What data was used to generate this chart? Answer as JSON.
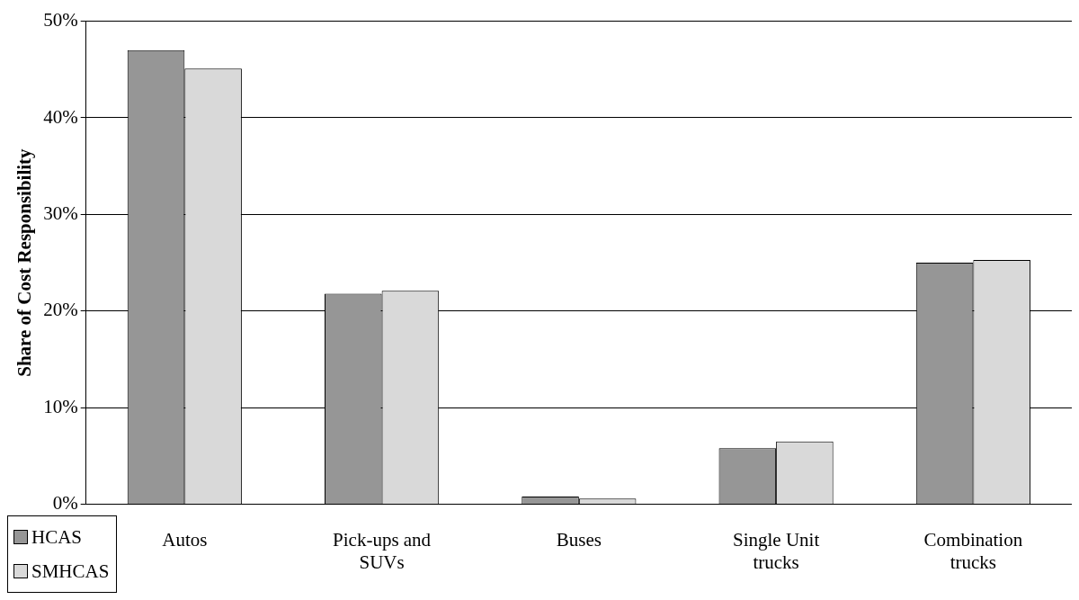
{
  "chart_data": {
    "type": "bar",
    "ylabel": "Share of Cost Responsibility",
    "categories": [
      "Autos",
      "Pick-ups and SUVs",
      "Buses",
      "Single Unit trucks",
      "Combination trucks"
    ],
    "series": [
      {
        "name": "HCAS",
        "color": "#969696",
        "values": [
          47,
          21.8,
          0.8,
          5.8,
          25.0
        ]
      },
      {
        "name": "SMHCAS",
        "color": "#d9d9d9",
        "values": [
          45.1,
          22.1,
          0.6,
          6.5,
          25.3
        ]
      }
    ],
    "ylim": [
      0,
      50
    ],
    "yticks": [
      {
        "value": 0,
        "label": "0%"
      },
      {
        "value": 10,
        "label": "10%"
      },
      {
        "value": 20,
        "label": "20%"
      },
      {
        "value": 30,
        "label": "30%"
      },
      {
        "value": 40,
        "label": "40%"
      },
      {
        "value": 50,
        "label": "50%"
      }
    ],
    "grid": "y",
    "legend": "bottom left"
  }
}
